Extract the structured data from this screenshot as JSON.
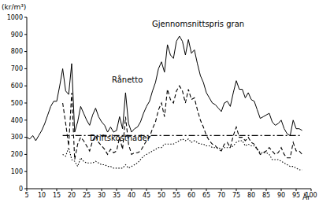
{
  "chart_data": {
    "type": "line",
    "y_label": "(kr/m³)",
    "x_label": "År",
    "xlim": [
      5,
      100
    ],
    "xticks": [
      5,
      10,
      15,
      20,
      25,
      30,
      35,
      40,
      45,
      50,
      55,
      60,
      65,
      70,
      75,
      80,
      85,
      90,
      95,
      100
    ],
    "ylim": [
      0,
      1000
    ],
    "yticks": [
      0,
      100,
      200,
      300,
      400,
      500,
      600,
      700,
      800,
      900,
      1000
    ],
    "grid": false,
    "series": [
      {
        "name": "Gjennomsnittspris gran",
        "color": "#000000",
        "line_style": "solid",
        "x": [
          5,
          6,
          7,
          8,
          9,
          10,
          11,
          12,
          13,
          14,
          15,
          16,
          17,
          18,
          19,
          20,
          21,
          22,
          23,
          24,
          25,
          26,
          27,
          28,
          29,
          30,
          31,
          32,
          33,
          34,
          35,
          36,
          37,
          38,
          39,
          40,
          41,
          42,
          43,
          44,
          45,
          46,
          47,
          48,
          49,
          50,
          51,
          52,
          53,
          54,
          55,
          56,
          57,
          58,
          59,
          60,
          61,
          62,
          63,
          64,
          65,
          66,
          67,
          68,
          69,
          70,
          71,
          72,
          73,
          74,
          75,
          76,
          77,
          78,
          79,
          80,
          81,
          82,
          83,
          84,
          85,
          86,
          87,
          88,
          89,
          90,
          91,
          92,
          93,
          94,
          95,
          96,
          97
        ],
        "values": [
          300,
          290,
          310,
          280,
          310,
          340,
          380,
          430,
          480,
          510,
          510,
          600,
          700,
          570,
          550,
          730,
          330,
          390,
          480,
          440,
          400,
          370,
          430,
          470,
          420,
          390,
          370,
          330,
          360,
          330,
          340,
          420,
          350,
          560,
          380,
          330,
          350,
          360,
          390,
          440,
          480,
          510,
          570,
          620,
          700,
          740,
          680,
          840,
          780,
          760,
          860,
          890,
          860,
          780,
          870,
          790,
          810,
          730,
          660,
          620,
          560,
          530,
          500,
          490,
          470,
          450,
          500,
          510,
          480,
          560,
          630,
          580,
          580,
          530,
          560,
          520,
          510,
          460,
          410,
          420,
          430,
          440,
          390,
          370,
          380,
          400,
          350,
          320,
          310,
          400,
          350,
          350,
          340
        ]
      },
      {
        "name": "Rånetto",
        "color": "#000000",
        "line_style": "dashed",
        "x": [
          17,
          18,
          19,
          20,
          21,
          22,
          23,
          24,
          25,
          26,
          27,
          28,
          29,
          30,
          31,
          32,
          33,
          34,
          35,
          36,
          37,
          38,
          39,
          40,
          41,
          42,
          43,
          44,
          45,
          46,
          47,
          48,
          49,
          50,
          51,
          52,
          53,
          54,
          55,
          56,
          57,
          58,
          59,
          60,
          61,
          62,
          63,
          64,
          65,
          66,
          67,
          68,
          69,
          70,
          71,
          72,
          73,
          74,
          75,
          76,
          77,
          78,
          79,
          80,
          81,
          82,
          83,
          84,
          85,
          86,
          87,
          88,
          89,
          90,
          91,
          92,
          93,
          94,
          95,
          96,
          97
        ],
        "values": [
          500,
          380,
          250,
          560,
          170,
          260,
          300,
          280,
          250,
          220,
          280,
          310,
          270,
          250,
          230,
          200,
          230,
          210,
          220,
          300,
          230,
          420,
          260,
          200,
          210,
          210,
          220,
          250,
          280,
          300,
          350,
          390,
          460,
          500,
          420,
          580,
          520,
          500,
          570,
          600,
          570,
          500,
          580,
          520,
          530,
          460,
          400,
          360,
          310,
          280,
          260,
          250,
          230,
          220,
          260,
          270,
          240,
          310,
          360,
          300,
          300,
          280,
          300,
          270,
          260,
          230,
          200,
          210,
          220,
          240,
          220,
          200,
          210,
          240,
          200,
          180,
          180,
          270,
          220,
          220,
          200
        ]
      },
      {
        "name": "Driftskostnader",
        "color": "#000000",
        "line_style": "dotted",
        "x": [
          17,
          18,
          19,
          20,
          21,
          22,
          23,
          24,
          25,
          26,
          27,
          28,
          29,
          30,
          31,
          32,
          33,
          34,
          35,
          36,
          37,
          38,
          39,
          40,
          41,
          42,
          43,
          44,
          45,
          46,
          47,
          48,
          49,
          50,
          51,
          52,
          53,
          54,
          55,
          56,
          57,
          58,
          59,
          60,
          61,
          62,
          63,
          64,
          65,
          66,
          67,
          68,
          69,
          70,
          71,
          72,
          73,
          74,
          75,
          76,
          77,
          78,
          79,
          80,
          81,
          82,
          83,
          84,
          85,
          86,
          87,
          88,
          89,
          90,
          91,
          92,
          93,
          94,
          95,
          96,
          97
        ],
        "values": [
          200,
          190,
          240,
          170,
          160,
          130,
          180,
          160,
          150,
          150,
          150,
          160,
          150,
          140,
          140,
          130,
          130,
          120,
          120,
          120,
          120,
          140,
          120,
          130,
          140,
          150,
          170,
          190,
          200,
          210,
          220,
          230,
          240,
          240,
          260,
          260,
          260,
          260,
          270,
          280,
          290,
          280,
          290,
          270,
          280,
          270,
          260,
          260,
          250,
          250,
          240,
          240,
          240,
          230,
          240,
          240,
          240,
          250,
          270,
          280,
          280,
          250,
          260,
          250,
          250,
          230,
          210,
          210,
          210,
          200,
          170,
          170,
          170,
          160,
          150,
          140,
          130,
          130,
          120,
          110,
          110
        ]
      },
      {
        "color": "#000000",
        "line_style": "dashdot",
        "x": [
          17,
          97
        ],
        "values": [
          310,
          310
        ]
      }
    ]
  }
}
